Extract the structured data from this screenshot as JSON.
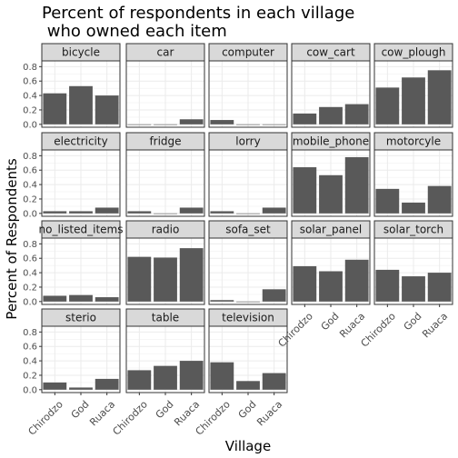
{
  "chart_data": {
    "type": "bar",
    "title_lines": [
      "Percent of respondents in each village",
      " who owned each item"
    ],
    "xlabel": "Village",
    "ylabel": "Percent of Respondents",
    "categories": [
      "Chirodzo",
      "God",
      "Ruaca"
    ],
    "y_ticks": [
      "0.0",
      "0.2",
      "0.4",
      "0.6",
      "0.8"
    ],
    "ylim": [
      -0.04,
      0.88
    ],
    "bar_color": "#595959",
    "grid": true,
    "panels": [
      {
        "name": "bicycle",
        "values": [
          0.43,
          0.53,
          0.4
        ]
      },
      {
        "name": "car",
        "values": [
          0.0,
          0.0,
          0.07
        ]
      },
      {
        "name": "computer",
        "values": [
          0.06,
          0.0,
          0.0
        ]
      },
      {
        "name": "cow_cart",
        "values": [
          0.15,
          0.24,
          0.28
        ]
      },
      {
        "name": "cow_plough",
        "values": [
          0.51,
          0.65,
          0.75
        ]
      },
      {
        "name": "electricity",
        "values": [
          0.03,
          0.03,
          0.08
        ]
      },
      {
        "name": "fridge",
        "values": [
          0.03,
          0.0,
          0.08
        ]
      },
      {
        "name": "lorry",
        "values": [
          0.03,
          0.0,
          0.08
        ]
      },
      {
        "name": "mobile_phone",
        "values": [
          0.64,
          0.53,
          0.78
        ]
      },
      {
        "name": "motorcyle",
        "values": [
          0.34,
          0.15,
          0.38
        ]
      },
      {
        "name": "no_listed_items",
        "values": [
          0.08,
          0.09,
          0.06
        ]
      },
      {
        "name": "radio",
        "values": [
          0.62,
          0.61,
          0.74
        ]
      },
      {
        "name": "sofa_set",
        "values": [
          0.02,
          0.0,
          0.17
        ]
      },
      {
        "name": "solar_panel",
        "values": [
          0.49,
          0.42,
          0.58
        ]
      },
      {
        "name": "solar_torch",
        "values": [
          0.44,
          0.35,
          0.4
        ]
      },
      {
        "name": "sterio",
        "values": [
          0.1,
          0.03,
          0.15
        ]
      },
      {
        "name": "table",
        "values": [
          0.27,
          0.33,
          0.4
        ]
      },
      {
        "name": "television",
        "values": [
          0.38,
          0.12,
          0.23
        ]
      }
    ]
  }
}
